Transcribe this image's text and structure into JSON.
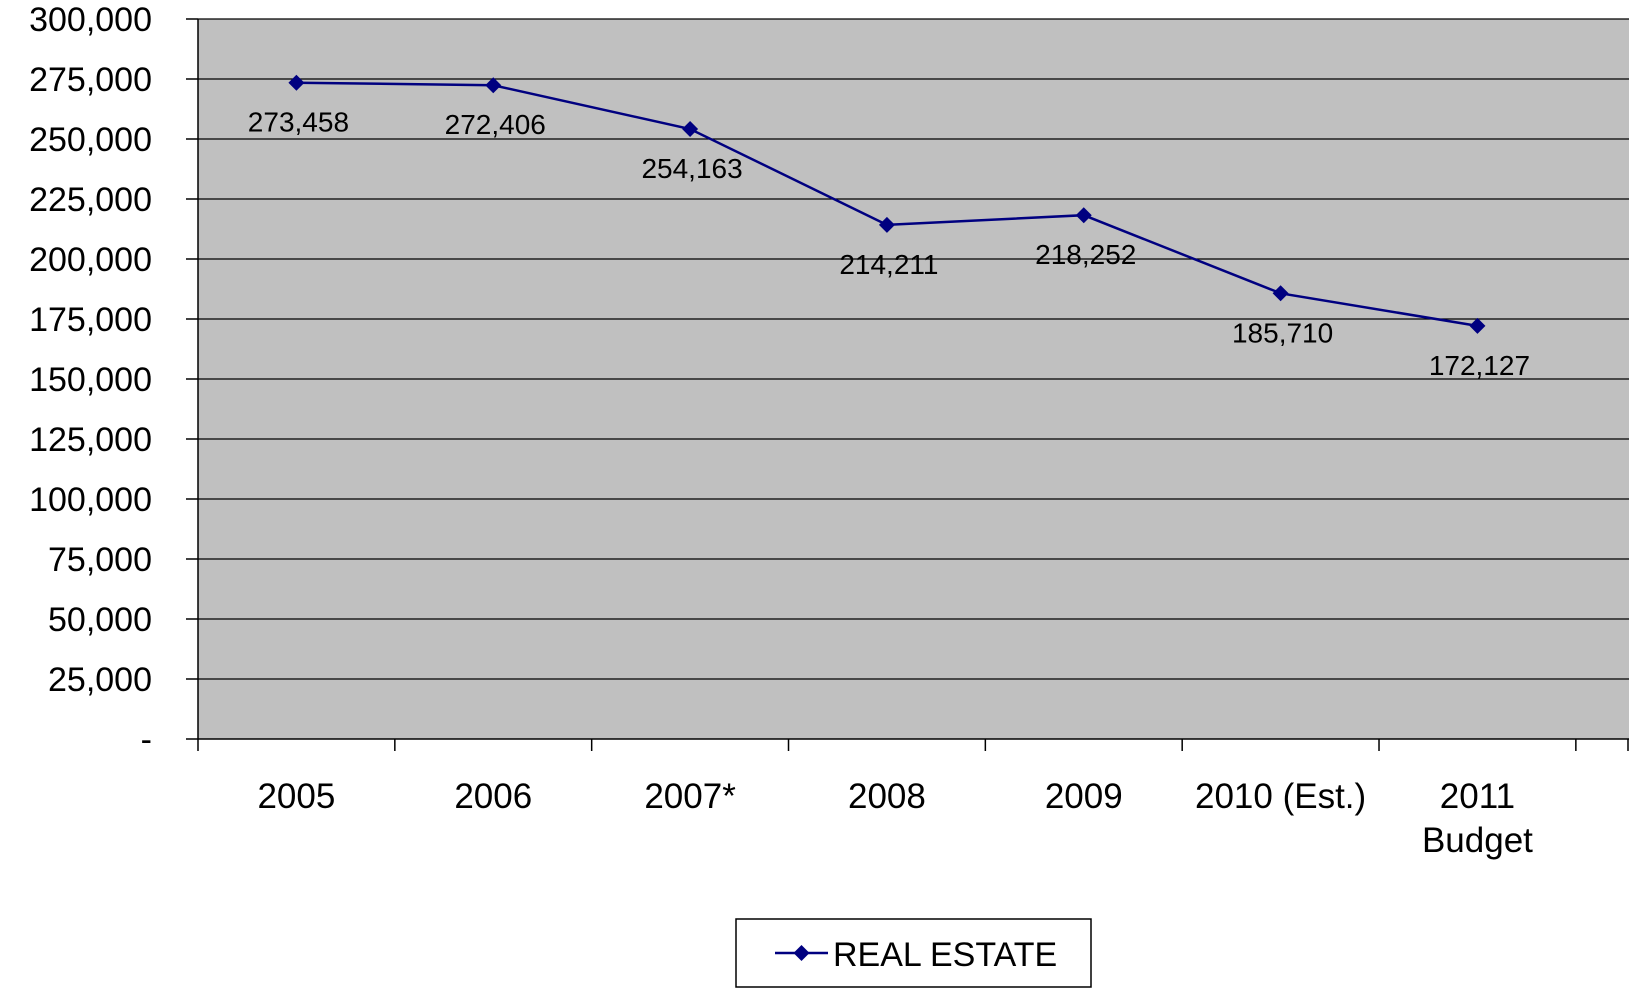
{
  "chart_data": {
    "type": "line",
    "title": "",
    "xlabel": "",
    "ylabel": "",
    "categories": [
      "2005",
      "2006",
      "2007*",
      "2008",
      "2009",
      "2010 (Est.)",
      "2011 Budget"
    ],
    "category_lines": [
      [
        "2005"
      ],
      [
        "2006"
      ],
      [
        "2007*"
      ],
      [
        "2008"
      ],
      [
        "2009"
      ],
      [
        "2010 (Est.)"
      ],
      [
        "2011",
        "Budget"
      ]
    ],
    "series": [
      {
        "name": "REAL ESTATE",
        "values": [
          273458,
          272406,
          254163,
          214211,
          218252,
          185710,
          172127
        ],
        "labels": [
          "273,458",
          "272,406",
          "254,163",
          "214,211",
          "218,252",
          "185,710",
          "172,127"
        ],
        "color": "#000080",
        "marker": "diamond"
      }
    ],
    "ylim": [
      0,
      300000
    ],
    "yticks": [
      0,
      25000,
      50000,
      75000,
      100000,
      125000,
      150000,
      175000,
      200000,
      225000,
      250000,
      275000,
      300000
    ],
    "ytick_labels": [
      "-",
      "25,000",
      "50,000",
      "75,000",
      "100,000",
      "125,000",
      "150,000",
      "175,000",
      "200,000",
      "225,000",
      "250,000",
      "275,000",
      "300,000"
    ],
    "grid": true,
    "plot_background": "#c0c0c0",
    "legend_position": "bottom"
  }
}
